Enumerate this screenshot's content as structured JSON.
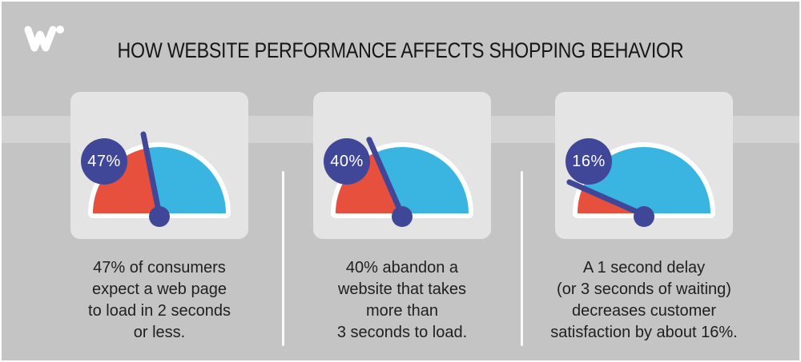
{
  "header": {
    "title": "HOW WEBSITE PERFORMANCE AFFECTS SHOPPING BEHAVIOR"
  },
  "logo": {
    "name": "w-dot-logo"
  },
  "colors": {
    "page_bg": "#c4c4c4",
    "band_bg": "#d3d3d3",
    "card_bg": "#e4e4e4",
    "gauge_red": "#e8503e",
    "gauge_blue": "#3ab5e2",
    "indigo": "#414798",
    "gauge_border": "#ffffff",
    "text": "#1f1f1f"
  },
  "cards": [
    {
      "percent": 47,
      "badge_label": "47%",
      "caption": "47% of consumers\nexpect a web page\nto load in 2 seconds\nor less."
    },
    {
      "percent": 40,
      "badge_label": "40%",
      "caption": "40% abandon a\nwebsite that takes\nmore than\n3 seconds to load."
    },
    {
      "percent": 16,
      "badge_label": "16%",
      "caption": "A 1 second delay\n(or 3 seconds of waiting)\ndecreases customer\nsatisfaction by about 16%."
    }
  ],
  "chart_data": [
    {
      "type": "pie",
      "subtype": "half-gauge",
      "title": "47% of consumers expect a web page to load in 2 seconds or less.",
      "label": "47%",
      "range": [
        0,
        100
      ],
      "series": [
        {
          "name": "highlighted",
          "value": 47,
          "color": "#e8503e"
        },
        {
          "name": "remainder",
          "value": 53,
          "color": "#3ab5e2"
        }
      ]
    },
    {
      "type": "pie",
      "subtype": "half-gauge",
      "title": "40% abandon a website that takes more than 3 seconds to load.",
      "label": "40%",
      "range": [
        0,
        100
      ],
      "series": [
        {
          "name": "highlighted",
          "value": 40,
          "color": "#e8503e"
        },
        {
          "name": "remainder",
          "value": 60,
          "color": "#3ab5e2"
        }
      ]
    },
    {
      "type": "pie",
      "subtype": "half-gauge",
      "title": "A 1 second delay (or 3 seconds of waiting) decreases customer satisfaction by about 16%.",
      "label": "16%",
      "range": [
        0,
        100
      ],
      "series": [
        {
          "name": "highlighted",
          "value": 16,
          "color": "#e8503e"
        },
        {
          "name": "remainder",
          "value": 84,
          "color": "#3ab5e2"
        }
      ]
    }
  ]
}
